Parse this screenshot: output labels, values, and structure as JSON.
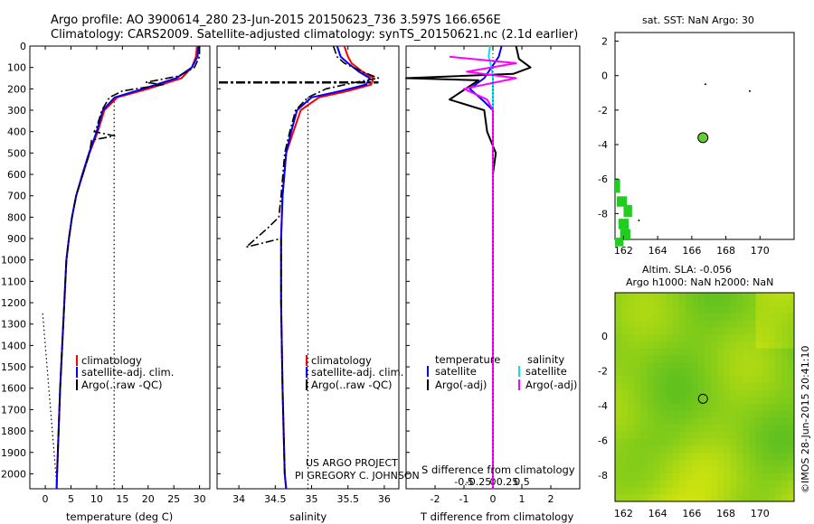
{
  "title_line1": "Argo profile: AO 3900614_280 23-Jun-2015 20150623_736 3.597S 166.656E",
  "title_line2": "Climatology: CARS2009. Satellite-adjusted climatology: synTS_20150621.nc (2.1d earlier)",
  "credit": "US ARGO PROJECT",
  "pi": "PI GREGORY C. JOHNSON",
  "footer": "©IMOS 28-Jun-2015 20:41:10",
  "colors": {
    "climatology": "#ff0000",
    "satellite": "#0000ff",
    "argo": "#000000",
    "satellite_salinity": "#00e5ee",
    "argo_salinity": "#ff00ff",
    "sst_marker": "#66cc33",
    "sst_patch": "#22cc22"
  },
  "legend": {
    "climatology": "climatology",
    "satellite": "satellite-adj. clim.",
    "argo": "Argo(..raw -QC)",
    "diff_temp_header": "temperature",
    "diff_sal_header": "salinity",
    "diff_satellite": "satellite",
    "diff_argo": "Argo(-adj)"
  },
  "chart_data": [
    {
      "id": "temperature",
      "type": "line",
      "xlabel": "temperature (deg C)",
      "ylabel": "",
      "xlim": [
        -3,
        32
      ],
      "ylim": [
        2070,
        0
      ],
      "xticks": [
        "0",
        "5",
        "10",
        "15",
        "20",
        "25",
        "30"
      ],
      "xtick_values": [
        0,
        5,
        10,
        15,
        20,
        25,
        30
      ],
      "yticks": [
        "0",
        "100",
        "200",
        "300",
        "400",
        "500",
        "600",
        "700",
        "800",
        "900",
        "1000",
        "1100",
        "1200",
        "1300",
        "1400",
        "1500",
        "1600",
        "1700",
        "1800",
        "1900",
        "2000"
      ],
      "ytick_values": [
        0,
        100,
        200,
        300,
        400,
        500,
        600,
        700,
        800,
        900,
        1000,
        1100,
        1200,
        1300,
        1400,
        1500,
        1600,
        1700,
        1800,
        1900,
        2000
      ],
      "series": [
        {
          "key": "climatology",
          "points": [
            [
              29.5,
              0
            ],
            [
              29.3,
              50
            ],
            [
              28.5,
              100
            ],
            [
              26.5,
              150
            ],
            [
              20,
              200
            ],
            [
              14,
              240
            ],
            [
              11.5,
              300
            ],
            [
              10.2,
              400
            ],
            [
              8.6,
              500
            ],
            [
              7.3,
              600
            ],
            [
              6,
              700
            ],
            [
              5.2,
              800
            ],
            [
              4.6,
              900
            ],
            [
              4.1,
              1000
            ],
            [
              3.7,
              1200
            ],
            [
              3.3,
              1400
            ],
            [
              2.9,
              1600
            ],
            [
              2.6,
              1800
            ],
            [
              2.3,
              2000
            ],
            [
              2.2,
              2070
            ]
          ]
        },
        {
          "key": "satellite",
          "points": [
            [
              29.8,
              0
            ],
            [
              29.6,
              50
            ],
            [
              28.5,
              100
            ],
            [
              25.5,
              150
            ],
            [
              19,
              200
            ],
            [
              13.5,
              240
            ],
            [
              11.2,
              300
            ],
            [
              10,
              400
            ],
            [
              8.5,
              500
            ],
            [
              7.2,
              600
            ],
            [
              6,
              700
            ],
            [
              5.2,
              800
            ],
            [
              4.6,
              900
            ],
            [
              4.1,
              1000
            ],
            [
              3.7,
              1200
            ],
            [
              3.3,
              1400
            ],
            [
              2.9,
              1600
            ],
            [
              2.6,
              1800
            ],
            [
              2.3,
              2000
            ],
            [
              2.2,
              2070
            ]
          ]
        },
        {
          "key": "argo",
          "points": [
            [
              30,
              0
            ],
            [
              30,
              50
            ],
            [
              29,
              100
            ],
            [
              26,
              140
            ],
            [
              19.5,
              170
            ],
            [
              23,
              180
            ],
            [
              15,
              210
            ],
            [
              12.5,
              240
            ],
            [
              11,
              300
            ],
            [
              10,
              380
            ],
            [
              9.5,
              400
            ],
            [
              13.5,
              420
            ],
            [
              9,
              440
            ],
            [
              8.6,
              500
            ],
            [
              7.3,
              600
            ],
            [
              6,
              700
            ],
            [
              5.2,
              800
            ],
            [
              4.6,
              900
            ],
            [
              4.1,
              1000
            ],
            [
              3.7,
              1200
            ],
            [
              3.3,
              1400
            ],
            [
              2.9,
              1600
            ],
            [
              2.6,
              1800
            ],
            [
              2.3,
              2000
            ]
          ]
        }
      ],
      "reference": [
        [
          13.4,
          240
        ],
        [
          13.4,
          2070
        ]
      ],
      "reference2": [
        [
          -0.5,
          1250
        ],
        [
          2.3,
          2070
        ]
      ]
    },
    {
      "id": "salinity",
      "type": "line",
      "xlabel": "salinity",
      "ylabel": "",
      "xlim": [
        33.7,
        36.2
      ],
      "ylim": [
        2070,
        0
      ],
      "xticks": [
        "34",
        "34.5",
        "35",
        "35.5",
        "36"
      ],
      "xtick_values": [
        34,
        34.5,
        35,
        35.5,
        36
      ],
      "series": [
        {
          "key": "climatology",
          "points": [
            [
              35.45,
              0
            ],
            [
              35.5,
              50
            ],
            [
              35.55,
              80
            ],
            [
              35.7,
              120
            ],
            [
              35.85,
              150
            ],
            [
              35.82,
              180
            ],
            [
              35.5,
              210
            ],
            [
              35.1,
              240
            ],
            [
              34.85,
              300
            ],
            [
              34.75,
              400
            ],
            [
              34.65,
              500
            ],
            [
              34.6,
              700
            ],
            [
              34.58,
              900
            ],
            [
              34.58,
              1200
            ],
            [
              34.6,
              1600
            ],
            [
              34.63,
              2000
            ],
            [
              34.65,
              2070
            ]
          ]
        },
        {
          "key": "satellite",
          "points": [
            [
              35.35,
              0
            ],
            [
              35.4,
              50
            ],
            [
              35.5,
              80
            ],
            [
              35.65,
              120
            ],
            [
              35.8,
              150
            ],
            [
              35.75,
              180
            ],
            [
              35.4,
              210
            ],
            [
              35.0,
              240
            ],
            [
              34.8,
              300
            ],
            [
              34.72,
              400
            ],
            [
              34.65,
              500
            ],
            [
              34.6,
              700
            ],
            [
              34.58,
              900
            ],
            [
              34.58,
              1200
            ],
            [
              34.6,
              1600
            ],
            [
              34.63,
              2000
            ],
            [
              34.65,
              2070
            ]
          ]
        },
        {
          "key": "argo",
          "points": [
            [
              35.3,
              0
            ],
            [
              35.35,
              50
            ],
            [
              35.45,
              80
            ],
            [
              35.7,
              120
            ],
            [
              35.92,
              150
            ],
            [
              35.6,
              170
            ],
            [
              35.2,
              200
            ],
            [
              34.95,
              240
            ],
            [
              34.78,
              300
            ],
            [
              34.7,
              400
            ],
            [
              34.63,
              500
            ],
            [
              34.58,
              700
            ],
            [
              34.55,
              800
            ],
            [
              34.4,
              850
            ],
            [
              34.1,
              940
            ],
            [
              34.58,
              900
            ],
            [
              34.58,
              1200
            ],
            [
              34.6,
              1600
            ],
            [
              34.63,
              2000
            ]
          ]
        }
      ],
      "reference": [
        [
          34.95,
          240
        ],
        [
          34.95,
          2070
        ]
      ]
    },
    {
      "id": "difference",
      "type": "line",
      "xlabel": "T difference from climatology",
      "x2label": "S difference from climatology",
      "xlim": [
        -3,
        3
      ],
      "ylim": [
        2070,
        0
      ],
      "xticks": [
        "-2",
        "-1",
        "0",
        "1",
        "2"
      ],
      "xtick_values": [
        -2,
        -1,
        0,
        1,
        2
      ],
      "x2ticks": [
        "-0.5",
        "-0.25",
        "0",
        "0.25",
        "0.5"
      ],
      "x2tick_values": [
        -0.5,
        -0.25,
        0,
        0.25,
        0.5
      ],
      "series": [
        {
          "key": "temp_satellite",
          "points": [
            [
              0.3,
              0
            ],
            [
              0.2,
              50
            ],
            [
              -0.3,
              150
            ],
            [
              -0.8,
              200
            ],
            [
              -0.3,
              260
            ],
            [
              0,
              300
            ],
            [
              0,
              2070
            ]
          ]
        },
        {
          "key": "temp_argo",
          "points": [
            [
              0.8,
              0
            ],
            [
              0.9,
              60
            ],
            [
              1.3,
              100
            ],
            [
              0.7,
              130
            ],
            [
              -3,
              150
            ],
            [
              -0.5,
              160
            ],
            [
              -1.5,
              250
            ],
            [
              -0.3,
              300
            ],
            [
              -0.2,
              400
            ],
            [
              0.1,
              500
            ],
            [
              0,
              600
            ],
            [
              0,
              2070
            ]
          ]
        },
        {
          "key": "sal_satellite",
          "points": [
            [
              -0.1,
              0
            ],
            [
              -0.15,
              50
            ],
            [
              -0.05,
              100
            ],
            [
              0,
              150
            ],
            [
              0,
              2070
            ]
          ]
        },
        {
          "key": "sal_argo",
          "points": [
            [
              -1.5,
              50
            ],
            [
              0.8,
              80
            ],
            [
              -0.9,
              120
            ],
            [
              0.8,
              150
            ],
            [
              -1,
              200
            ],
            [
              -0.2,
              250
            ],
            [
              0,
              300
            ],
            [
              0,
              2070
            ]
          ]
        }
      ]
    },
    {
      "id": "sst_map",
      "type": "scatter",
      "title": "sat. SST: NaN Argo: 30",
      "xlim": [
        161.5,
        172
      ],
      "ylim": [
        -9.5,
        2.5
      ],
      "xticks": [
        "162",
        "164",
        "166",
        "168",
        "170"
      ],
      "xtick_values": [
        162,
        164,
        166,
        168,
        170
      ],
      "yticks": [
        "2",
        "0",
        "-2",
        "-4",
        "-6",
        "-8"
      ],
      "ytick_values": [
        2,
        0,
        -2,
        -4,
        -6,
        -8
      ],
      "argo_position": [
        166.656,
        -3.597
      ],
      "dots": [
        [
          166.8,
          -0.5
        ],
        [
          169.4,
          -0.9
        ],
        [
          162.9,
          -8.4
        ]
      ]
    },
    {
      "id": "sla_map",
      "type": "heatmap",
      "title": "Altim. SLA: -0.056",
      "subtitle": "Argo h1000: NaN h2000: NaN",
      "xlim": [
        161.5,
        172
      ],
      "ylim": [
        -9.5,
        2.5
      ],
      "xticks": [
        "162",
        "164",
        "166",
        "168",
        "170"
      ],
      "xtick_values": [
        162,
        164,
        166,
        168,
        170
      ],
      "yticks": [
        "0",
        "-2",
        "-4",
        "-6",
        "-8"
      ],
      "ytick_values": [
        0,
        -2,
        -4,
        -6,
        -8
      ],
      "argo_position": [
        166.656,
        -3.597
      ]
    }
  ]
}
